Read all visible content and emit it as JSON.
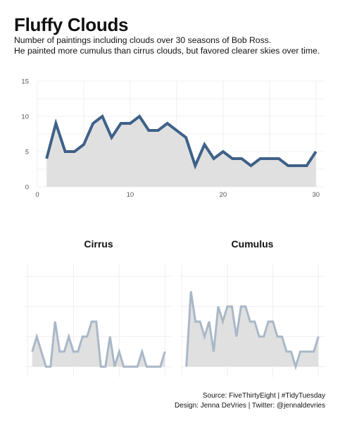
{
  "header": {
    "title": "Fluffy Clouds",
    "subtitle_line1": "Number of paintings including clouds over 30 seasons of Bob Ross.",
    "subtitle_line2": "He painted more cumulus than cirrus clouds, but favored clearer skies over time."
  },
  "caption": {
    "line1": "Source: FiveThirtyEight | #TidyTuesday",
    "line2": "Design: Jenna DeVries | Twitter: @jennaldevries"
  },
  "colors": {
    "main_line": "#3f6189",
    "facet_line": "#a9b8c8",
    "area_fill": "#e0e0e0",
    "grid": "#ebebeb"
  },
  "chart_data": [
    {
      "type": "area",
      "title": "",
      "xlabel": "",
      "ylabel": "",
      "xlim": [
        0,
        31
      ],
      "ylim": [
        0,
        15
      ],
      "x_ticks": [
        0,
        10,
        20,
        30
      ],
      "y_ticks": [
        0,
        5,
        10,
        15
      ],
      "grid": true,
      "x": [
        1,
        2,
        3,
        4,
        5,
        6,
        7,
        8,
        9,
        10,
        11,
        12,
        13,
        14,
        15,
        16,
        17,
        18,
        19,
        20,
        21,
        22,
        23,
        24,
        25,
        26,
        27,
        28,
        29,
        30
      ],
      "series": [
        {
          "values": [
            4,
            9,
            5,
            5,
            6,
            9,
            10,
            7,
            9,
            9,
            10,
            8,
            8,
            9,
            8,
            7,
            3,
            6,
            4,
            5,
            4,
            4,
            3,
            4,
            4,
            4,
            3,
            3,
            3,
            5
          ]
        }
      ]
    },
    {
      "type": "area",
      "facet_label": "Cirrus",
      "grid": true,
      "x": [
        1,
        2,
        3,
        4,
        5,
        6,
        7,
        8,
        9,
        10,
        11,
        12,
        13,
        14,
        15,
        16,
        17,
        18,
        19,
        20,
        21,
        22,
        23,
        24,
        25,
        26,
        27,
        28,
        29,
        30
      ],
      "ylim": [
        0,
        7
      ],
      "series": [
        {
          "values": [
            1,
            2,
            1,
            0,
            0,
            3,
            1,
            1,
            2,
            1,
            1,
            2,
            2,
            3,
            3,
            0,
            0,
            2,
            0,
            1,
            0,
            0,
            0,
            0,
            1,
            0,
            0,
            0,
            0,
            1
          ]
        }
      ]
    },
    {
      "type": "area",
      "facet_label": "Cumulus",
      "grid": true,
      "x": [
        1,
        2,
        3,
        4,
        5,
        6,
        7,
        8,
        9,
        10,
        11,
        12,
        13,
        14,
        15,
        16,
        17,
        18,
        19,
        20,
        21,
        22,
        23,
        24,
        25,
        26,
        27,
        28,
        29,
        30
      ],
      "ylim": [
        0,
        7
      ],
      "series": [
        {
          "values": [
            0,
            5,
            3,
            3,
            2,
            3,
            1,
            4,
            3,
            4,
            4,
            2,
            4,
            4,
            3,
            3,
            2,
            2,
            3,
            3,
            2,
            2,
            1,
            1,
            0,
            1,
            1,
            1,
            1,
            2
          ]
        }
      ]
    }
  ]
}
